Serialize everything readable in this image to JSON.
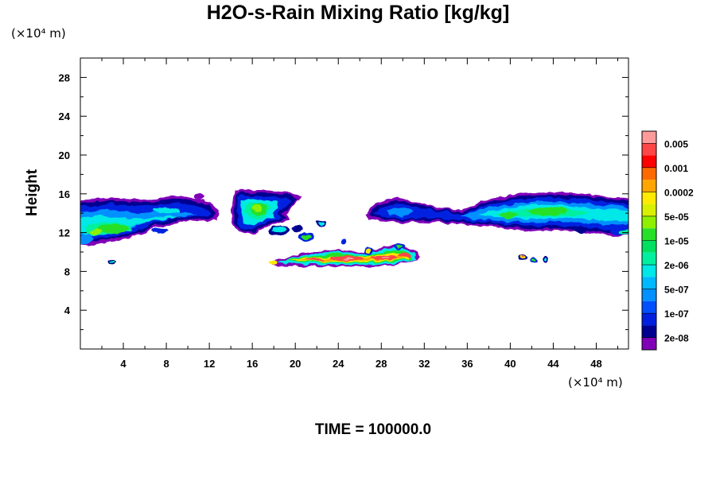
{
  "chart_data": {
    "type": "contour",
    "title": "H2O-s-Rain Mixing Ratio [kg/kg]",
    "ylabel": "Height",
    "xlabel": "",
    "x_unit": "(×10⁴ m)",
    "y_unit": "(×10⁴ m)",
    "xlim": [
      0,
      51
    ],
    "ylim": [
      0,
      30
    ],
    "x_ticks": [
      4,
      8,
      12,
      16,
      20,
      24,
      28,
      32,
      36,
      40,
      44,
      48
    ],
    "y_ticks": [
      4,
      8,
      12,
      16,
      20,
      24,
      28
    ],
    "time_label": "TIME = 100000.0",
    "colorbar": {
      "labels": [
        "0.005",
        "0.001",
        "0.0002",
        "5e-05",
        "1e-05",
        "2e-06",
        "5e-07",
        "1e-07",
        "2e-08"
      ],
      "colors": [
        "#ff9a9a",
        "#ff4646",
        "#ff0000",
        "#ff6a00",
        "#ffa500",
        "#ffea00",
        "#d8f000",
        "#8ef000",
        "#28e028",
        "#00e060",
        "#00f0a0",
        "#00e8e8",
        "#00b8ff",
        "#0090ff",
        "#0050ff",
        "#0020e0",
        "#000090",
        "#8000b8"
      ]
    },
    "regions": [
      {
        "name": "upper-left-cloud",
        "x": [
          0,
          12.8
        ],
        "y": [
          11,
          15.5
        ],
        "level": "1e-05"
      },
      {
        "name": "central-cloud",
        "x": [
          14,
          21.5
        ],
        "y": [
          11,
          16.3
        ],
        "level": "1e-05"
      },
      {
        "name": "right-cloud-band",
        "x": [
          26.5,
          51
        ],
        "y": [
          11.5,
          16.3
        ],
        "level": "1e-05"
      },
      {
        "name": "low-rain-layer",
        "x": [
          18,
          31.5
        ],
        "y": [
          8.5,
          10.8
        ],
        "level": "0.005"
      },
      {
        "name": "small-cell-left",
        "x": [
          2.5,
          3.3
        ],
        "y": [
          8.6,
          9.2
        ],
        "level": "5e-07"
      },
      {
        "name": "small-cell-right",
        "x": [
          40.7,
          43.5
        ],
        "y": [
          8.6,
          9.8
        ],
        "level": "5e-05"
      }
    ]
  }
}
